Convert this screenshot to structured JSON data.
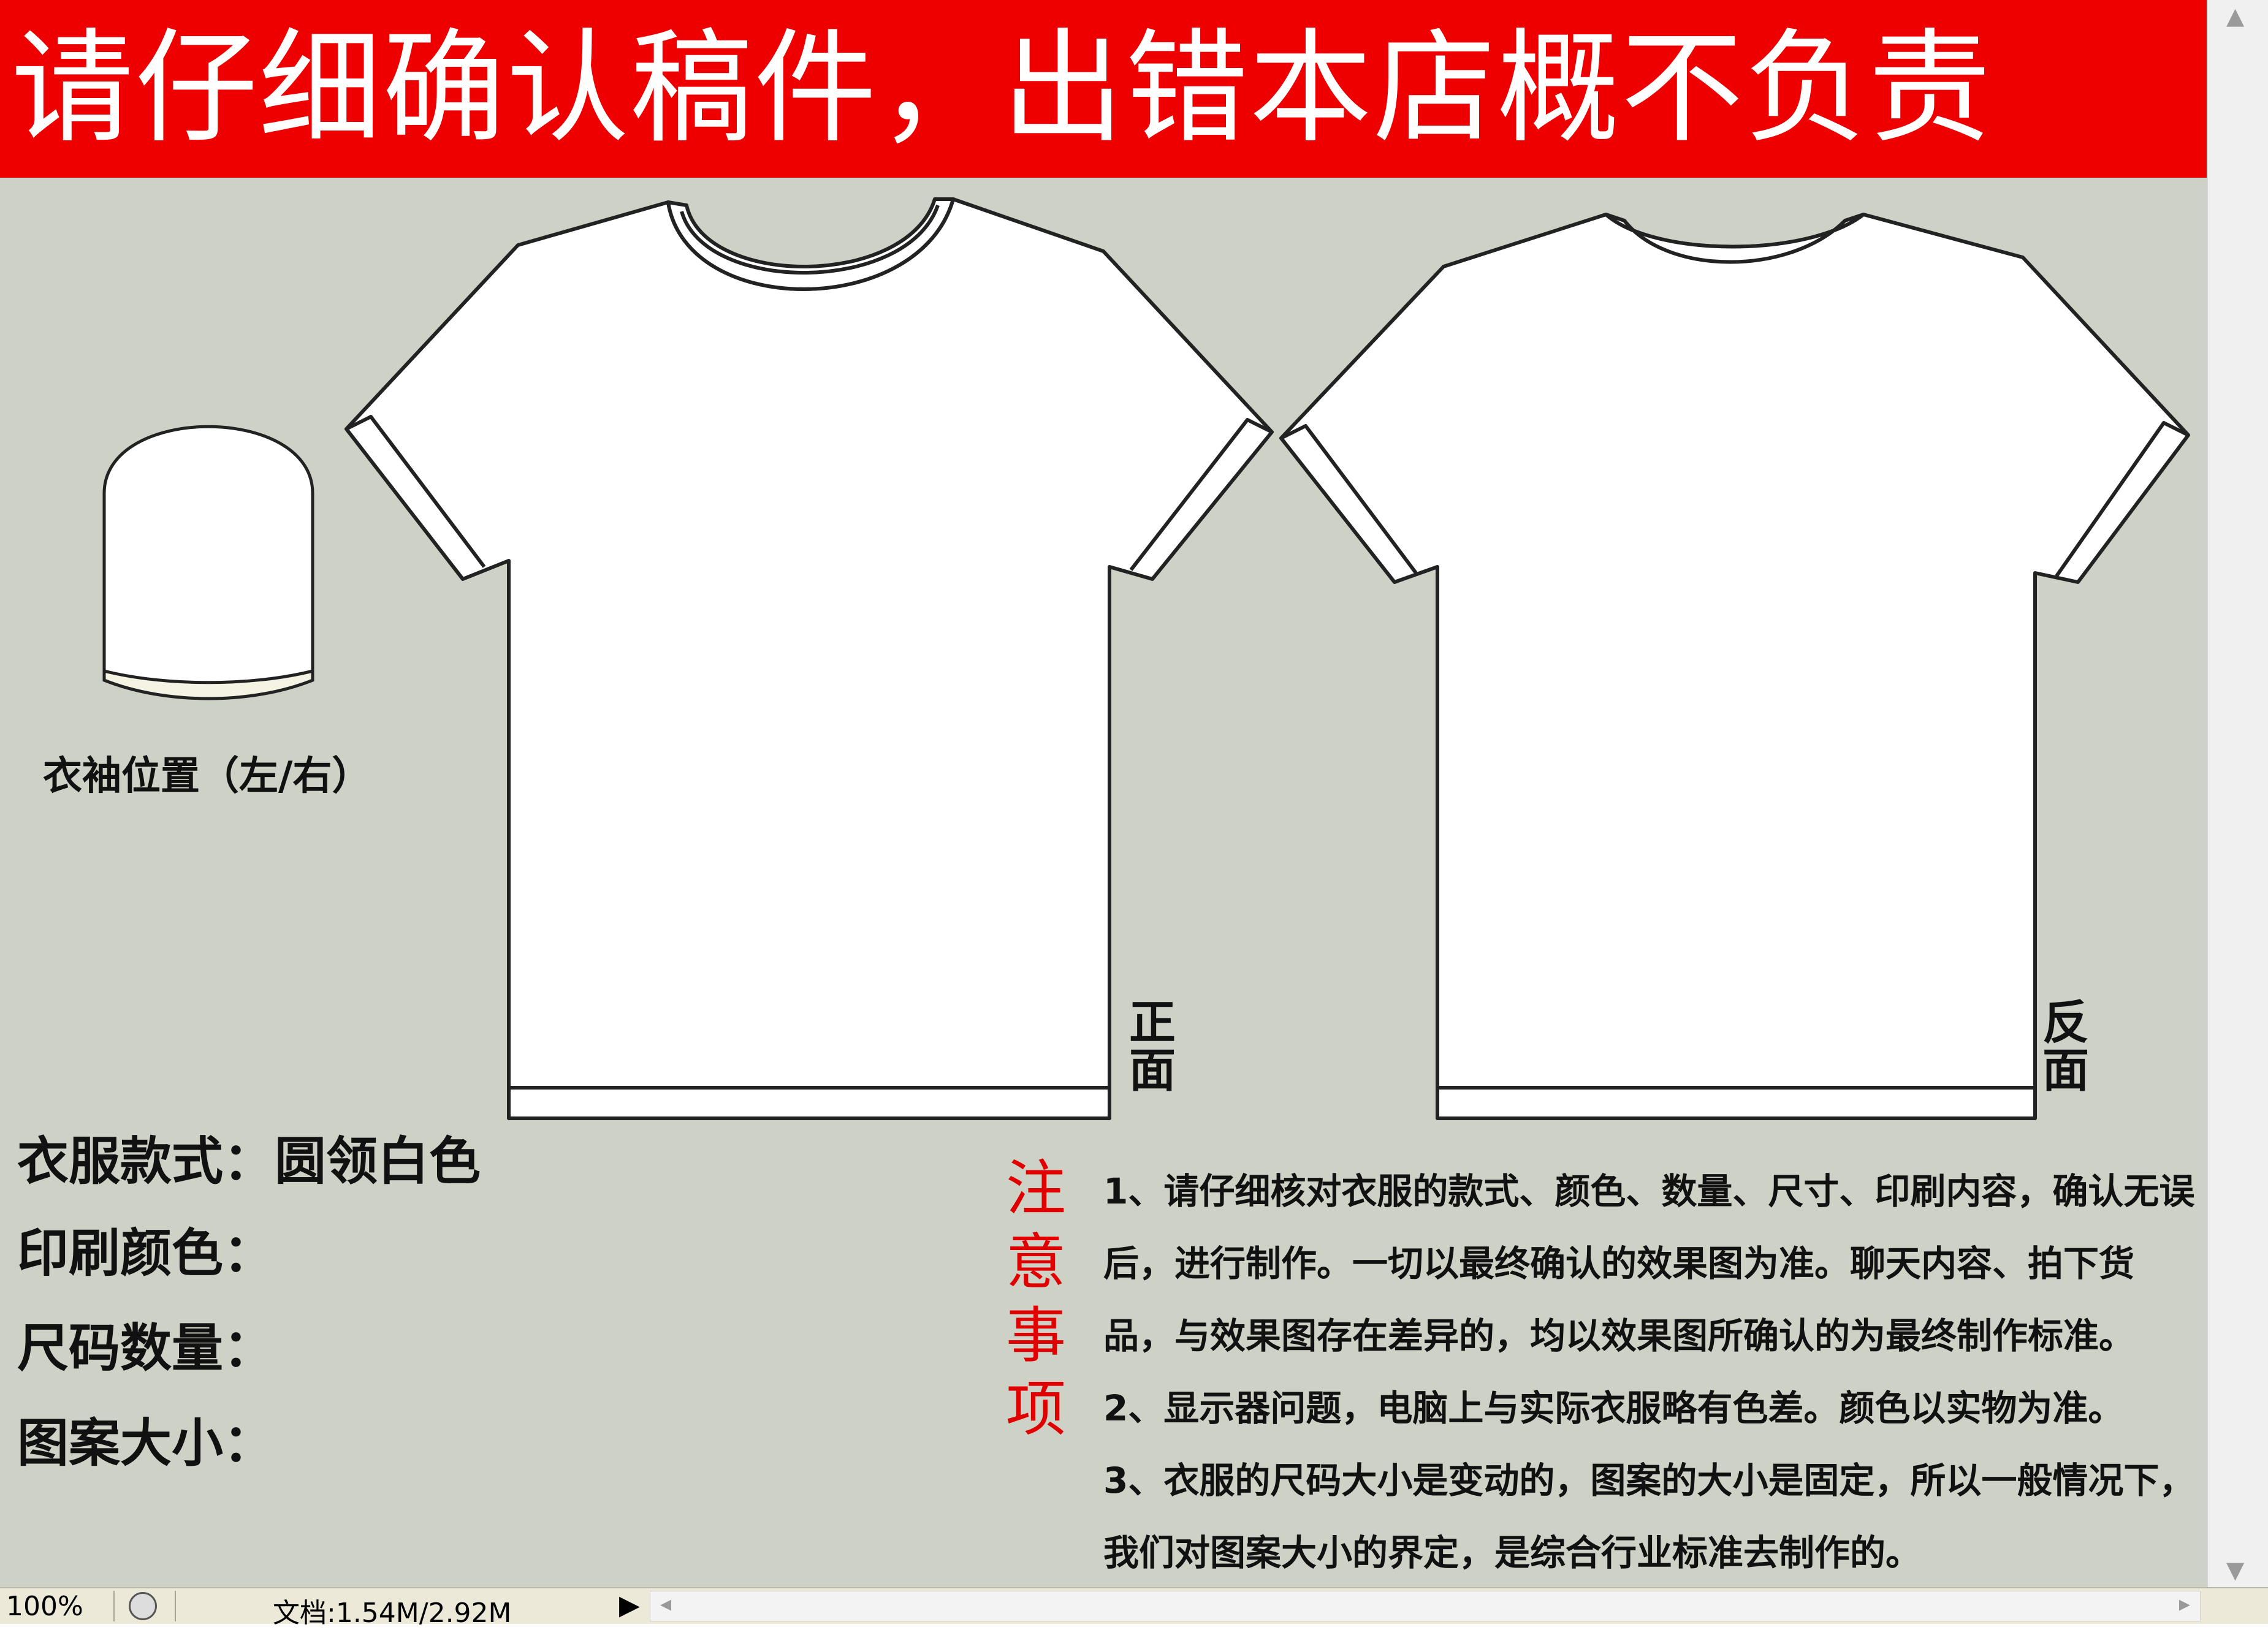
{
  "banner": {
    "text": "请仔细确认稿件，出错本店概不负责"
  },
  "sleeve": {
    "label": "衣袖位置（左/右）"
  },
  "shirt": {
    "front_label": "正面",
    "back_label": "反面"
  },
  "specs": {
    "style_label": "衣服款式：",
    "style_value": "圆领白色",
    "print_color_label": "印刷颜色：",
    "size_qty_label": "尺码数量：",
    "pattern_size_label": "图案大小："
  },
  "notice": {
    "title": "注意事项",
    "items": [
      "1、请仔细核对衣服的款式、颜色、数量、尺寸、印刷内容，确认无误后，进行制作。一切以最终确认的效果图为准。聊天内容、拍下货品，与效果图存在差异的，均以效果图所确认的为最终制作标准。",
      "2、显示器问题，电脑上与实际衣服略有色差。颜色以实物为准。",
      "3、衣服的尺码大小是变动的，图案的大小是固定，所以一般情况下，我们对图案大小的界定，是综合行业标准去制作的。"
    ]
  },
  "statusbar": {
    "zoom": "100%",
    "doc_info": "文档:1.54M/2.92M"
  },
  "colors": {
    "banner_bg": "#ee0000",
    "canvas_bg": "#cdd1c6",
    "notice_title": "#e00000"
  }
}
